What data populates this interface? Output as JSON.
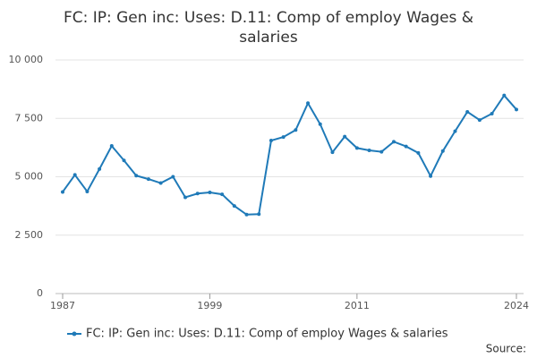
{
  "chart_data": {
    "type": "line",
    "title": "FC: IP: Gen inc: Uses: D.11: Comp of employ Wages & salaries",
    "x": [
      1987,
      1988,
      1989,
      1990,
      1991,
      1992,
      1993,
      1994,
      1995,
      1996,
      1997,
      1998,
      1999,
      2000,
      2001,
      2002,
      2003,
      2004,
      2005,
      2006,
      2007,
      2008,
      2009,
      2010,
      2011,
      2012,
      2013,
      2014,
      2015,
      2016,
      2017,
      2018,
      2019,
      2020,
      2021,
      2022,
      2023,
      2024
    ],
    "series": [
      {
        "name": "FC: IP: Gen inc: Uses: D.11: Comp of employ Wages & salaries",
        "color": "#1f7ab8",
        "values": [
          4350,
          5080,
          4370,
          5330,
          6320,
          5700,
          5050,
          4900,
          4730,
          5000,
          4120,
          4280,
          4330,
          4250,
          3750,
          3380,
          3400,
          6550,
          6700,
          7000,
          8150,
          7250,
          6050,
          6720,
          6230,
          6130,
          6070,
          6500,
          6300,
          6020,
          5030,
          6100,
          6950,
          7780,
          7430,
          7700,
          8480,
          7880
        ]
      }
    ],
    "xlim": [
      1987,
      2024
    ],
    "xticks": [
      1987,
      1999,
      2011,
      2024
    ],
    "ylim": [
      0,
      10000
    ],
    "yticks": [
      0,
      {
        "value": 2500,
        "label": "2 500"
      },
      {
        "value": 5000,
        "label": "5 000"
      },
      {
        "value": 7500,
        "label": "7 500"
      },
      {
        "value": 10000,
        "label": "10 000"
      }
    ],
    "grid": true,
    "legend": "bottom",
    "source": "Source:"
  }
}
